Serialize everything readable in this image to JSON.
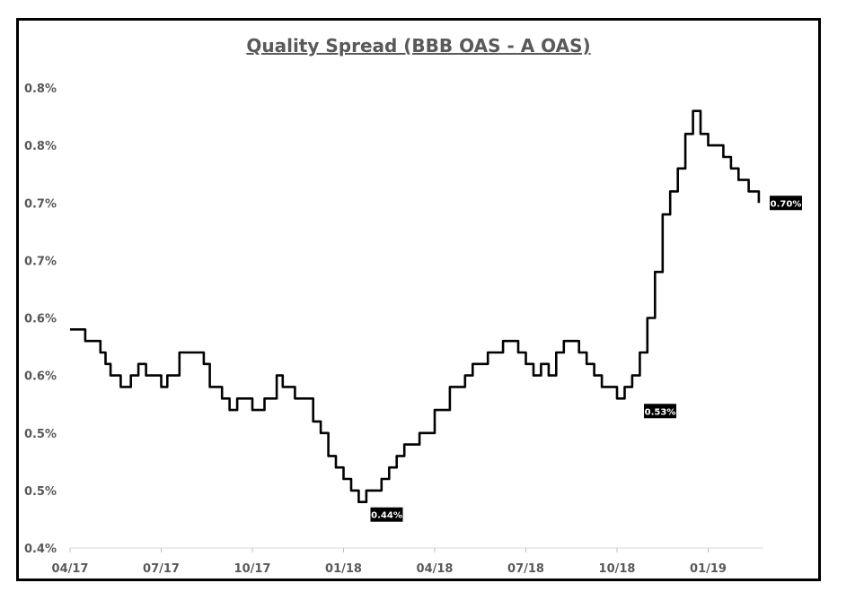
{
  "chart_data": {
    "type": "line",
    "title": "Quality Spread (BBB OAS - A OAS)",
    "xlabel": "",
    "ylabel": "",
    "y_ticks": [
      "0.8%",
      "0.8%",
      "0.7%",
      "0.7%",
      "0.6%",
      "0.6%",
      "0.5%",
      "0.5%",
      "0.4%"
    ],
    "x_ticks": [
      "04/17",
      "07/17",
      "10/17",
      "01/18",
      "04/18",
      "07/18",
      "10/18",
      "01/19"
    ],
    "ylim": [
      0.4,
      0.8
    ],
    "grid": false,
    "series": [
      {
        "color": "#000000",
        "x": [
          "04/17",
          "04/17",
          "05/17",
          "05/17",
          "05/17",
          "05/17",
          "05/17",
          "05/17",
          "06/17",
          "06/17",
          "06/17",
          "06/17",
          "07/17",
          "07/17",
          "07/17",
          "07/17",
          "07/17",
          "08/17",
          "08/17",
          "08/17",
          "08/17",
          "08/17",
          "09/17",
          "09/17",
          "09/17",
          "09/17",
          "10/17",
          "10/17",
          "10/17",
          "10/17",
          "10/17",
          "11/17",
          "11/17",
          "11/17",
          "11/17",
          "11/17",
          "12/17",
          "12/17",
          "12/17",
          "12/17",
          "01/18",
          "01/18",
          "01/18",
          "01/18",
          "02/18",
          "02/18",
          "02/18",
          "02/18",
          "03/18",
          "03/18",
          "03/18",
          "03/18",
          "04/18",
          "04/18",
          "04/18",
          "04/18",
          "05/18",
          "05/18",
          "05/18",
          "05/18",
          "06/18",
          "06/18",
          "06/18",
          "06/18",
          "07/18",
          "07/18",
          "07/18",
          "07/18",
          "08/18",
          "08/18",
          "08/18",
          "08/18",
          "09/18",
          "09/18",
          "09/18",
          "09/18",
          "10/18",
          "10/18",
          "10/18",
          "10/18",
          "11/18",
          "11/18",
          "11/18",
          "11/18",
          "12/18",
          "12/18",
          "12/18",
          "12/18",
          "01/19",
          "01/19",
          "01/19",
          "01/19",
          "02/19",
          "02/19",
          "02/19"
        ],
        "values": [
          0.59,
          0.58,
          0.57,
          0.56,
          0.55,
          0.55,
          0.54,
          0.54,
          0.55,
          0.56,
          0.55,
          0.55,
          0.54,
          0.55,
          0.55,
          0.57,
          0.57,
          0.57,
          0.57,
          0.56,
          0.54,
          0.54,
          0.53,
          0.52,
          0.53,
          0.53,
          0.52,
          0.52,
          0.53,
          0.53,
          0.55,
          0.54,
          0.54,
          0.53,
          0.53,
          0.53,
          0.51,
          0.5,
          0.48,
          0.47,
          0.46,
          0.45,
          0.44,
          0.45,
          0.45,
          0.46,
          0.47,
          0.48,
          0.49,
          0.49,
          0.5,
          0.5,
          0.52,
          0.52,
          0.54,
          0.54,
          0.55,
          0.56,
          0.56,
          0.57,
          0.57,
          0.58,
          0.58,
          0.57,
          0.56,
          0.55,
          0.56,
          0.55,
          0.57,
          0.58,
          0.58,
          0.57,
          0.56,
          0.55,
          0.54,
          0.54,
          0.53,
          0.54,
          0.55,
          0.57,
          0.6,
          0.64,
          0.69,
          0.71,
          0.73,
          0.76,
          0.78,
          0.76,
          0.75,
          0.75,
          0.74,
          0.73,
          0.72,
          0.71,
          0.7
        ]
      }
    ],
    "annotations": [
      {
        "label": "0.44%",
        "x": "01/18",
        "y": 0.44
      },
      {
        "label": "0.53%",
        "x": "10/18",
        "y": 0.53
      },
      {
        "label": "0.70%",
        "x": "02/19",
        "y": 0.7
      }
    ]
  }
}
